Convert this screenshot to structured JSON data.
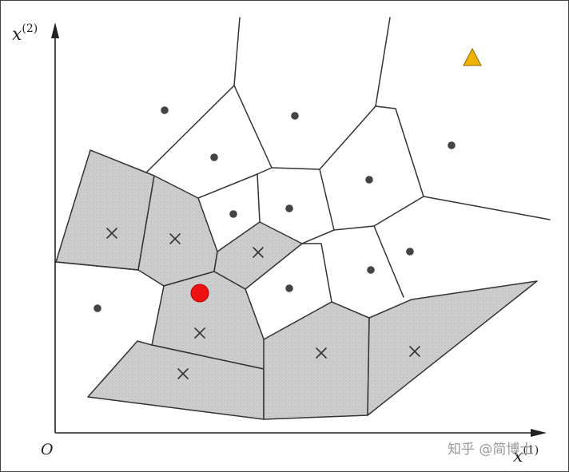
{
  "axes": {
    "x_label_base": "x",
    "x_label_sup": "(1)",
    "y_label_base": "x",
    "y_label_sup": "(2)",
    "origin_label": "O"
  },
  "markers": {
    "dot_icon": "filled-dot",
    "cross_icon": "cross",
    "query_point_color": "#ee1111",
    "triangle_color": "#f0b400"
  },
  "colors": {
    "shaded_cell": "#cfcfcf",
    "edge": "#333333"
  },
  "watermark": {
    "text": "知乎 @简博士"
  }
}
